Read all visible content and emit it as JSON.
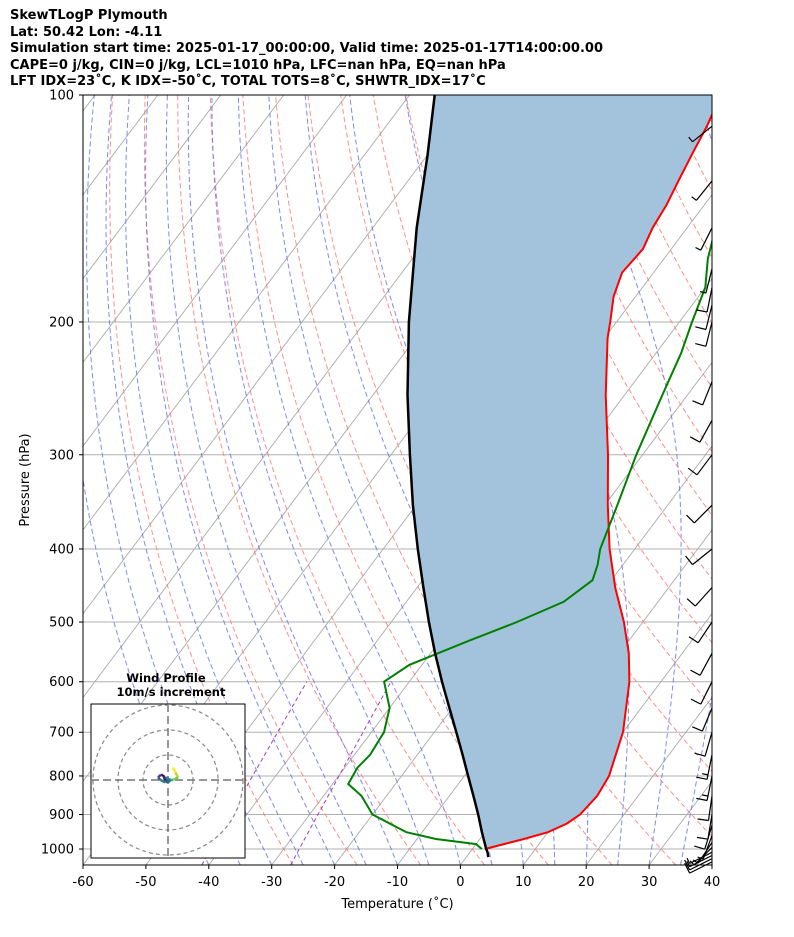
{
  "header": {
    "line1": "SkewTLogP Plymouth",
    "line2": "Lat: 50.42   Lon: -4.11",
    "line3": "Simulation start time: 2025-01-17_00:00:00, Valid time: 2025-01-17T14:00:00.00",
    "line4": "CAPE=0 j/kg, CIN=0 j/kg, LCL=1010 hPa, LFC=nan hPa, EQ=nan hPa",
    "line5": "LFT IDX=23˚C, K IDX=-50˚C, TOTAL TOTS=8˚C, SHWTR_IDX=17˚C"
  },
  "chart_data": {
    "type": "line",
    "subtype": "skew-T log-P diagram",
    "xlabel": "Temperature (˚C)",
    "ylabel": "Pressure (hPa)",
    "xlim": [
      -60,
      40
    ],
    "ylim": [
      1050,
      100
    ],
    "yscale": "log",
    "skew_deg_per_decade": 90,
    "x_ticks": [
      -60,
      -50,
      -40,
      -30,
      -20,
      -10,
      0,
      10,
      20,
      30,
      40
    ],
    "y_ticks": [
      100,
      200,
      300,
      400,
      500,
      600,
      700,
      800,
      900,
      1000
    ],
    "grid": true,
    "colors": {
      "temperature": "#ff0000",
      "dewpoint": "#008000",
      "parcel": "#000000",
      "cape_fill": "#a3c3dc",
      "dry_adiabats": "#ff7070",
      "moist_adiabats": "#6a74f0",
      "mixing_ratio": "#9b3fc8",
      "isotherms": "#aaaaaa"
    },
    "series": [
      {
        "name": "temperature",
        "p": [
          1000,
          970,
          950,
          925,
          900,
          850,
          800,
          700,
          600,
          550,
          500,
          450,
          400,
          350,
          300,
          250,
          210,
          200,
          185,
          172,
          160,
          150,
          140,
          130,
          120,
          110,
          100
        ],
        "t": [
          2,
          7,
          10,
          12,
          13,
          13.5,
          13,
          10,
          5,
          1.5,
          -3,
          -8.5,
          -14,
          -19.5,
          -25.5,
          -33,
          -39.5,
          -41,
          -43.5,
          -45,
          -44.5,
          -45.5,
          -46,
          -47,
          -48,
          -49,
          -50.5
        ]
      },
      {
        "name": "dewpoint",
        "p": [
          1000,
          985,
          970,
          950,
          900,
          850,
          820,
          780,
          750,
          700,
          650,
          600,
          570,
          530,
          500,
          470,
          440,
          420,
          400,
          350,
          300,
          250,
          220,
          200,
          180,
          165,
          150,
          140,
          130,
          120,
          110,
          100
        ],
        "t": [
          1.5,
          0,
          -7,
          -12.5,
          -20,
          -24,
          -27.5,
          -28,
          -27.5,
          -28,
          -30,
          -34,
          -32,
          -25.5,
          -20,
          -15,
          -13,
          -14,
          -15.5,
          -18,
          -21,
          -24,
          -26,
          -28,
          -30,
          -33,
          -35.5,
          -36,
          -37,
          -40.5,
          -43,
          -46
        ]
      },
      {
        "name": "parcel",
        "p": [
          1025,
          1010,
          1000,
          950,
          900,
          850,
          800,
          750,
          700,
          650,
          600,
          550,
          500,
          450,
          400,
          350,
          300,
          250,
          200,
          150,
          120,
          100
        ],
        "t": [
          3.5,
          2.8,
          2.2,
          -0.5,
          -3.2,
          -6.2,
          -9.4,
          -12.8,
          -16.5,
          -20.5,
          -24.8,
          -29.3,
          -34,
          -39,
          -44.5,
          -50.5,
          -57,
          -64.5,
          -73,
          -83,
          -90,
          -96
        ]
      }
    ],
    "wind_barbs": {
      "p": [
        1040,
        1030,
        1020,
        1010,
        995,
        980,
        960,
        930,
        900,
        850,
        800,
        750,
        700,
        650,
        600,
        550,
        500,
        450,
        400,
        350,
        300,
        270,
        240,
        200,
        190,
        180,
        170,
        150,
        130,
        110
      ],
      "u": [
        10,
        10,
        8,
        6,
        5,
        4,
        3,
        3,
        2,
        2,
        3,
        3,
        4,
        5,
        6,
        7,
        8,
        9,
        10,
        8,
        6,
        5,
        4,
        3,
        3,
        2,
        2,
        3,
        4,
        5
      ],
      "v": [
        5,
        5,
        4,
        3,
        5,
        6,
        8,
        10,
        12,
        14,
        15,
        15,
        14,
        12,
        12,
        13,
        12,
        10,
        8,
        8,
        8,
        9,
        10,
        12,
        12,
        10,
        8,
        6,
        5,
        4
      ]
    },
    "hodograph": {
      "title": "Wind Profile",
      "subtitle": "10m/s increment",
      "rings_ms": [
        10,
        20,
        30
      ],
      "u": [
        2,
        3,
        4,
        2,
        0,
        -1,
        -3,
        -4,
        -3,
        -2,
        -1,
        0,
        1,
        -1,
        -2
      ],
      "v": [
        -5,
        -3,
        -1,
        0,
        0,
        1,
        0,
        -1,
        -2,
        -2,
        0,
        1,
        0,
        -1,
        -1
      ]
    }
  }
}
